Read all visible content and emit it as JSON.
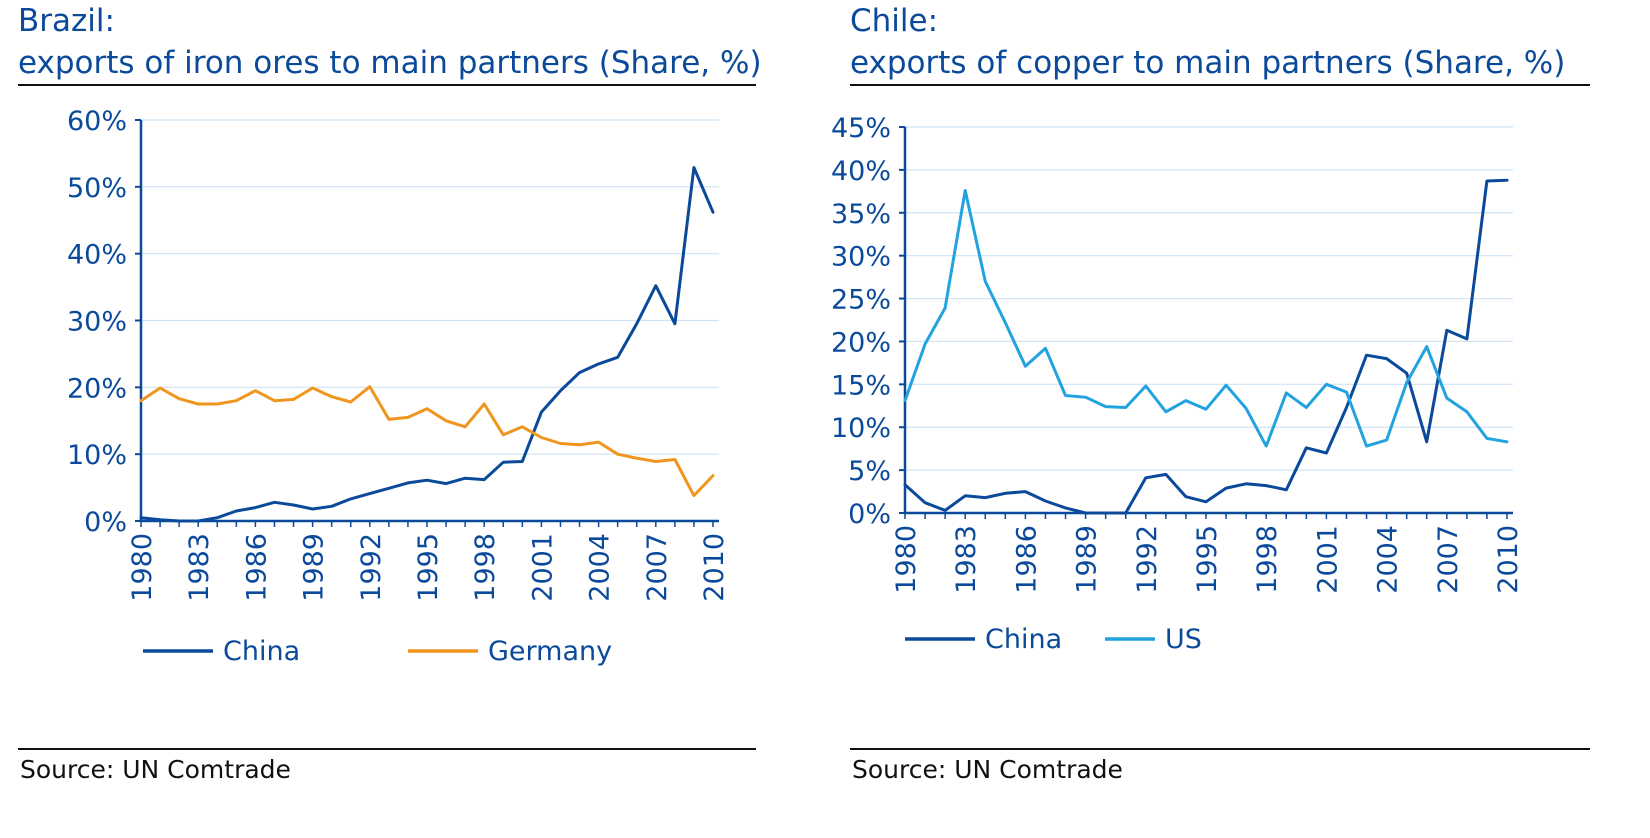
{
  "colors": {
    "title": "#0b4a9b",
    "china": "#0b4a9b",
    "germany": "#f0951e",
    "us": "#22a3e0",
    "grid": "#cfe3f5",
    "axis": "#0b4a9b"
  },
  "chart_data": [
    {
      "type": "line",
      "title_line1": "Brazil:",
      "title_line2": "exports of iron ores to main partners (Share, %)",
      "source": "Source:  UN Comtrade",
      "x": [
        1980,
        1981,
        1982,
        1983,
        1984,
        1985,
        1986,
        1987,
        1988,
        1989,
        1990,
        1991,
        1992,
        1993,
        1994,
        1995,
        1996,
        1997,
        1998,
        1999,
        2000,
        2001,
        2002,
        2003,
        2004,
        2005,
        2006,
        2007,
        2008,
        2009,
        2010
      ],
      "xticks": [
        "1980",
        "1983",
        "1986",
        "1989",
        "1992",
        "1995",
        "1998",
        "2001",
        "2004",
        "2007",
        "2010"
      ],
      "yticks": [
        "0%",
        "10%",
        "20%",
        "30%",
        "40%",
        "50%",
        "60%"
      ],
      "ylim": [
        0,
        60
      ],
      "grid": true,
      "legend_position": "bottom",
      "series": [
        {
          "name": "China",
          "values": [
            0.5,
            0.2,
            0,
            0,
            0.5,
            1.5,
            2,
            2.8,
            2.4,
            1.8,
            2.2,
            3.3,
            4.1,
            4.9,
            5.7,
            6.1,
            5.6,
            6.4,
            6.2,
            8.8,
            8.9,
            16.3,
            19.5,
            22.2,
            23.5,
            24.5,
            29.5,
            35.2,
            29.5,
            52.9,
            46.2
          ]
        },
        {
          "name": "Germany",
          "values": [
            18,
            19.9,
            18.3,
            17.5,
            17.5,
            18,
            19.5,
            18,
            18.2,
            19.9,
            18.6,
            17.8,
            20.1,
            15.2,
            15.5,
            16.8,
            15,
            14.1,
            17.5,
            12.9,
            14.1,
            12.5,
            11.6,
            11.4,
            11.8,
            10,
            9.4,
            8.9,
            9.2,
            3.8,
            6.8
          ]
        }
      ]
    },
    {
      "type": "line",
      "title_line1": "Chile:",
      "title_line2": "exports of copper to main partners (Share, %)",
      "source": "Source:  UN Comtrade",
      "x": [
        1980,
        1981,
        1982,
        1983,
        1984,
        1985,
        1986,
        1987,
        1988,
        1989,
        1990,
        1991,
        1992,
        1993,
        1994,
        1995,
        1996,
        1997,
        1998,
        1999,
        2000,
        2001,
        2002,
        2003,
        2004,
        2005,
        2006,
        2007,
        2008,
        2009,
        2010
      ],
      "xticks": [
        "1980",
        "1983",
        "1986",
        "1989",
        "1992",
        "1995",
        "1998",
        "2001",
        "2004",
        "2007",
        "2010"
      ],
      "yticks": [
        "0%",
        "5%",
        "10%",
        "15%",
        "20%",
        "25%",
        "30%",
        "35%",
        "40%",
        "45%"
      ],
      "ylim": [
        0,
        45
      ],
      "grid": true,
      "legend_position": "bottom",
      "series": [
        {
          "name": "China",
          "values": [
            3.3,
            1.2,
            0.3,
            2,
            1.8,
            2.3,
            2.5,
            1.4,
            0.6,
            0,
            0,
            0,
            4.1,
            4.5,
            1.9,
            1.3,
            2.9,
            3.4,
            3.2,
            2.7,
            7.6,
            7,
            12.3,
            18.4,
            18,
            16.3,
            8.3,
            21.3,
            20.3,
            38.7,
            38.8
          ]
        },
        {
          "name": "US",
          "values": [
            13.1,
            19.7,
            23.9,
            37.6,
            27,
            22.2,
            17.1,
            19.2,
            13.7,
            13.5,
            12.4,
            12.3,
            14.8,
            11.8,
            13.1,
            12.1,
            14.9,
            12.2,
            7.8,
            14,
            12.3,
            15,
            14.1,
            7.8,
            8.5,
            15.2,
            19.4,
            13.4,
            11.8,
            8.7,
            8.3
          ]
        }
      ]
    }
  ]
}
